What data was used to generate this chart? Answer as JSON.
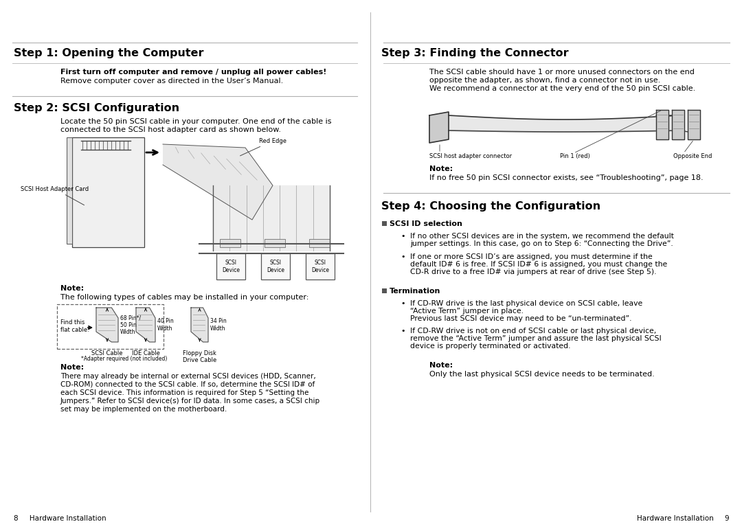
{
  "bg_color": "#ffffff",
  "step1_title": "Step 1: Opening the Computer",
  "step1_bold": "First turn off computer and remove / unplug all power cables!",
  "step1_text": "Remove computer cover as directed in the User’s Manual.",
  "step2_title": "Step 2: SCSI Configuration",
  "step2_text1": "Locate the 50 pin SCSI cable in your computer. One end of the cable is",
  "step2_text2": "connected to the SCSI host adapter card as shown below.",
  "step3_title": "Step 3: Finding the Connector",
  "step3_text1": "The SCSI cable should have 1 or more unused connectors on the end",
  "step3_text2": "opposite the adapter, as shown, find a connector not in use.",
  "step3_text3": "We recommend a connector at the very end of the 50 pin SCSI cable.",
  "step4_title": "Step 4: Choosing the Configuration",
  "step4_scsi_id": "SCSI ID selection",
  "step4_bullet1a": "If no other SCSI devices are in the system, we recommend the default",
  "step4_bullet1b": "jumper settings. In this case, go on to Step 6: “Connecting the Drive”.",
  "step4_bullet2a": "If one or more SCSI ID’s are assigned, you must determine if the",
  "step4_bullet2b": "default ID# 6 is free. If SCSI ID# 6 is assigned, you must change the",
  "step4_bullet2c": "CD-R drive to a free ID# via jumpers at rear of drive (see Step 5).",
  "step4_termination": "Termination",
  "step4_term1a": "If CD-RW drive is the last physical device on SCSI cable, leave",
  "step4_term1b": "“Active Term” jumper in place.",
  "step4_term1c": "Previous last SCSI device may need to be “un-terminated”.",
  "step4_term2a": "If CD-RW drive is not on end of SCSI cable or last physical device,",
  "step4_term2b": "remove the “Active Term” jumper and assure the last physical SCSI",
  "step4_term2c": "device is properly terminated or activated.",
  "note_bold": "Note:",
  "step2_note1_text": "The following types of cables may be installed in your computer:",
  "step2_note2a": "There may already be internal or external SCSI devices (HDD, Scanner,",
  "step2_note2b": "CD-ROM) connected to the SCSI cable. If so, determine the SCSI ID# of",
  "step2_note2c": "each SCSI device. This information is required for Step 5 “Setting the",
  "step2_note2d": "Jumpers.” Refer to SCSI device(s) for ID data. In some cases, a SCSI chip",
  "step2_note2e": "set may be implemented on the motherboard.",
  "step3_note_text": "If no free 50 pin SCSI connector exists, see “Troubleshooting”, page 18.",
  "step4_note_text": "Only the last physical SCSI device needs to be terminated.",
  "scsi_host_label": "SCSI Host Adapter Card",
  "red_edge_label": "Red Edge",
  "scsi_host_cable_label": "SCSI host adapter connector",
  "pin1_label": "Pin 1 (red)",
  "opp_end_label": "Opposite End",
  "find_flat": "Find this\nflat cable!",
  "scsi_cable_label": "SCSI Cable",
  "ide_cable_label": "IDE Cable",
  "floppy_label": "Floppy Disk\nDrive Cable",
  "adapter_note": "*Adapter required (not included)",
  "pin68": "68 Pin*/\n50 Pin\nWidth",
  "pin40": "40 Pin\nWidth",
  "pin34": "34 Pin\nWidth",
  "footer_left": "8     Hardware Installation",
  "footer_right": "Hardware Installation     9"
}
